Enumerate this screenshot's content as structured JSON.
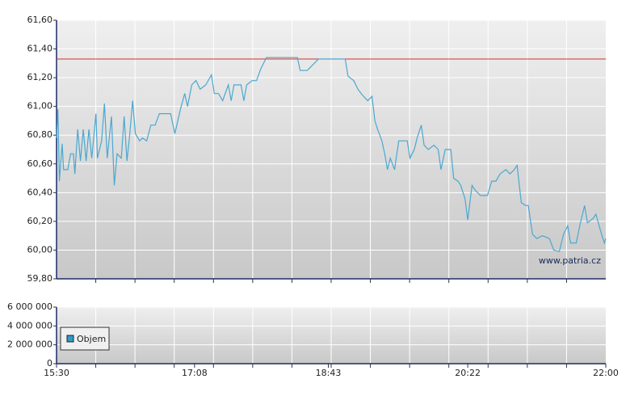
{
  "chart_data": [
    {
      "type": "line",
      "x": [
        930,
        931,
        932,
        934,
        935,
        938,
        940,
        942,
        943,
        945,
        947,
        949,
        951,
        953,
        955,
        958,
        959,
        962,
        964,
        966,
        969,
        971,
        973,
        976,
        978,
        980,
        982,
        984,
        986,
        989,
        991,
        994,
        997,
        1000,
        1003,
        1011,
        1014,
        1018,
        1021,
        1023,
        1026,
        1029,
        1032,
        1036,
        1040,
        1042,
        1045,
        1048,
        1052,
        1054,
        1056,
        1061,
        1063,
        1065,
        1069,
        1072,
        1075,
        1079,
        1101,
        1103,
        1108,
        1111,
        1116,
        1135,
        1137,
        1141,
        1144,
        1147,
        1151,
        1154,
        1156,
        1158,
        1161,
        1163,
        1165,
        1167,
        1170,
        1173,
        1177,
        1179,
        1181,
        1184,
        1186,
        1189,
        1191,
        1194,
        1198,
        1201,
        1203,
        1206,
        1210,
        1212,
        1215,
        1217,
        1220,
        1222,
        1225,
        1227,
        1231,
        1236,
        1239,
        1242,
        1245,
        1249,
        1252,
        1255,
        1257,
        1260,
        1263,
        1265,
        1268,
        1271,
        1275,
        1280,
        1283,
        1287,
        1290,
        1293,
        1295,
        1299,
        1302,
        1305,
        1307,
        1311,
        1313,
        1317,
        1319,
        1320
      ],
      "series": [
        {
          "color": "#4aa8d0",
          "values": [
            60.78,
            60.98,
            60.48,
            60.74,
            60.56,
            60.56,
            60.67,
            60.67,
            60.53,
            60.84,
            60.62,
            60.84,
            60.62,
            60.84,
            60.64,
            60.95,
            60.64,
            60.76,
            61.02,
            60.64,
            60.93,
            60.45,
            60.67,
            60.64,
            60.93,
            60.62,
            60.81,
            61.04,
            60.81,
            60.76,
            60.78,
            60.76,
            60.87,
            60.87,
            60.95,
            60.95,
            60.81,
            60.98,
            61.09,
            61.0,
            61.15,
            61.18,
            61.12,
            61.15,
            61.22,
            61.09,
            61.09,
            61.04,
            61.15,
            61.04,
            61.15,
            61.15,
            61.04,
            61.15,
            61.18,
            61.18,
            61.26,
            61.34,
            61.34,
            61.25,
            61.25,
            61.28,
            61.33,
            61.33,
            61.21,
            61.18,
            61.12,
            61.08,
            61.04,
            61.07,
            60.9,
            60.84,
            60.76,
            60.67,
            60.56,
            60.64,
            60.56,
            60.76,
            60.76,
            60.76,
            60.64,
            60.7,
            60.78,
            60.87,
            60.73,
            60.7,
            60.73,
            60.7,
            60.56,
            60.7,
            60.7,
            60.5,
            60.48,
            60.45,
            60.36,
            60.21,
            60.45,
            60.42,
            60.38,
            60.38,
            60.48,
            60.48,
            60.53,
            60.56,
            60.53,
            60.56,
            60.59,
            60.33,
            60.31,
            60.31,
            60.11,
            60.08,
            60.1,
            60.08,
            60.0,
            59.99,
            60.11,
            60.17,
            60.05,
            60.05,
            60.19,
            60.31,
            60.19,
            60.22,
            60.25,
            60.11,
            60.05,
            60.08
          ]
        }
      ],
      "reference_line": {
        "value": 61.33,
        "color": "#cc3333"
      },
      "ylim": [
        59.8,
        61.6
      ],
      "yticks": [
        {
          "value": 59.8,
          "label": "59,80"
        },
        {
          "value": 60.0,
          "label": "60,00"
        },
        {
          "value": 60.2,
          "label": "60,20"
        },
        {
          "value": 60.4,
          "label": "60,40"
        },
        {
          "value": 60.6,
          "label": "60,60"
        },
        {
          "value": 60.8,
          "label": "60,80"
        },
        {
          "value": 61.0,
          "label": "61,00"
        },
        {
          "value": 61.2,
          "label": "61,20"
        },
        {
          "value": 61.4,
          "label": "61,40"
        },
        {
          "value": 61.6,
          "label": "61,60"
        }
      ],
      "xlim": [
        930,
        1320
      ],
      "grid": true,
      "watermark": "www.patria.cz"
    },
    {
      "type": "bar",
      "x": [],
      "series": [
        {
          "name": "Objem",
          "color": "#3399cc",
          "values": []
        }
      ],
      "ylim": [
        0,
        6000000
      ],
      "yticks": [
        0,
        {
          "value": 2000000,
          "label": "2 000 000"
        },
        {
          "value": 4000000,
          "label": "4 000 000"
        },
        {
          "value": 6000000,
          "label": "6 000 000"
        }
      ],
      "xlim": [
        930,
        1320
      ],
      "xticks": [
        {
          "value": 930,
          "label": "15:30"
        },
        {
          "value": 1028,
          "label": "17:08"
        },
        {
          "value": 1123,
          "label": "18:43"
        },
        {
          "value": 1222,
          "label": "20:22"
        },
        {
          "value": 1320,
          "label": "22:00"
        }
      ],
      "grid": true,
      "legend": "upper-left"
    }
  ]
}
